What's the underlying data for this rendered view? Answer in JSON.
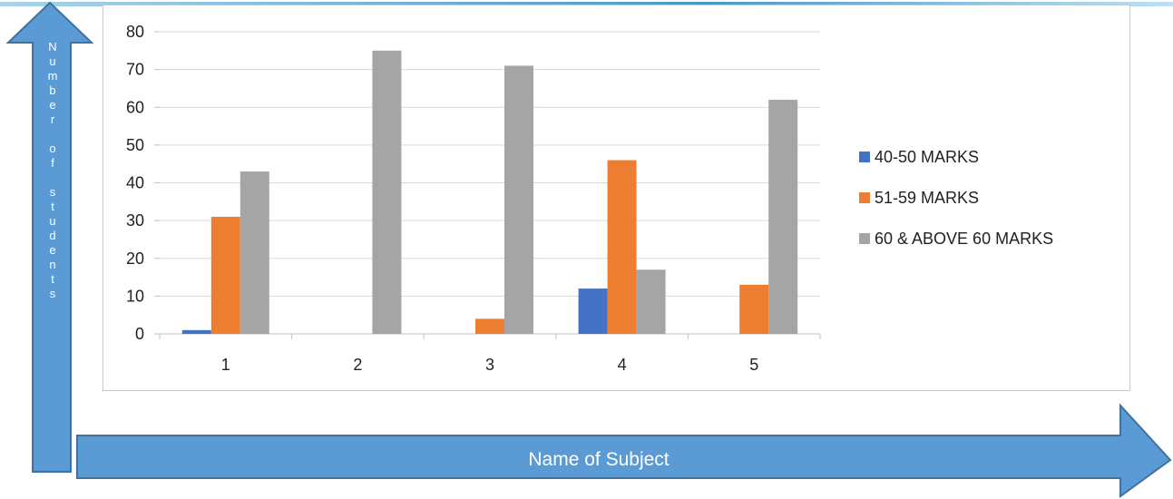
{
  "chart_data": {
    "type": "bar",
    "categories": [
      "1",
      "2",
      "3",
      "4",
      "5"
    ],
    "series": [
      {
        "name": "40-50 MARKS",
        "color": "#4472C4",
        "values": [
          1,
          0,
          0,
          12,
          0
        ]
      },
      {
        "name": "51-59 MARKS",
        "color": "#ED7D31",
        "values": [
          31,
          0,
          4,
          46,
          13
        ]
      },
      {
        "name": "60 & ABOVE 60 MARKS",
        "color": "#A5A5A5",
        "values": [
          43,
          75,
          71,
          17,
          62
        ]
      }
    ],
    "ylim": [
      0,
      80
    ],
    "yticks": [
      0,
      10,
      20,
      30,
      40,
      50,
      60,
      70,
      80
    ],
    "grid": true,
    "legend_position": "right",
    "xlabel": "Name of Subject",
    "ylabel": "Number of students"
  },
  "colors": {
    "arrow_fill": "#5B9BD5",
    "arrow_stroke": "#41719C"
  }
}
